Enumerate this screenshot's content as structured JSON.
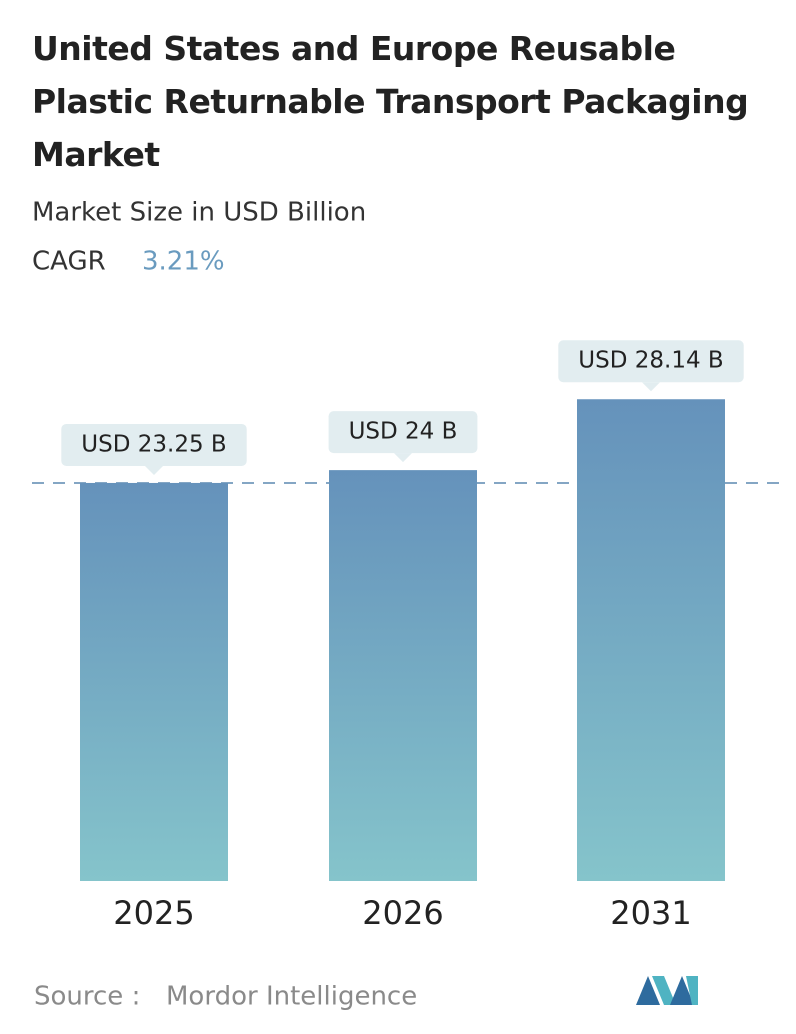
{
  "chart_data": {
    "type": "bar",
    "title": "United States and Europe Reusable Plastic Returnable Transport Packaging Market",
    "subtitle": "Market Size in USD Billion",
    "cagr_label": "CAGR",
    "cagr": "3.21%",
    "categories": [
      "2025",
      "2026",
      "2031"
    ],
    "values": [
      23.25,
      24,
      28.14
    ],
    "value_labels": [
      "USD 23.25 B",
      "USD 24 B",
      "USD 28.14 B"
    ],
    "source_label": "Source :",
    "source": "Mordor Intelligence"
  }
}
